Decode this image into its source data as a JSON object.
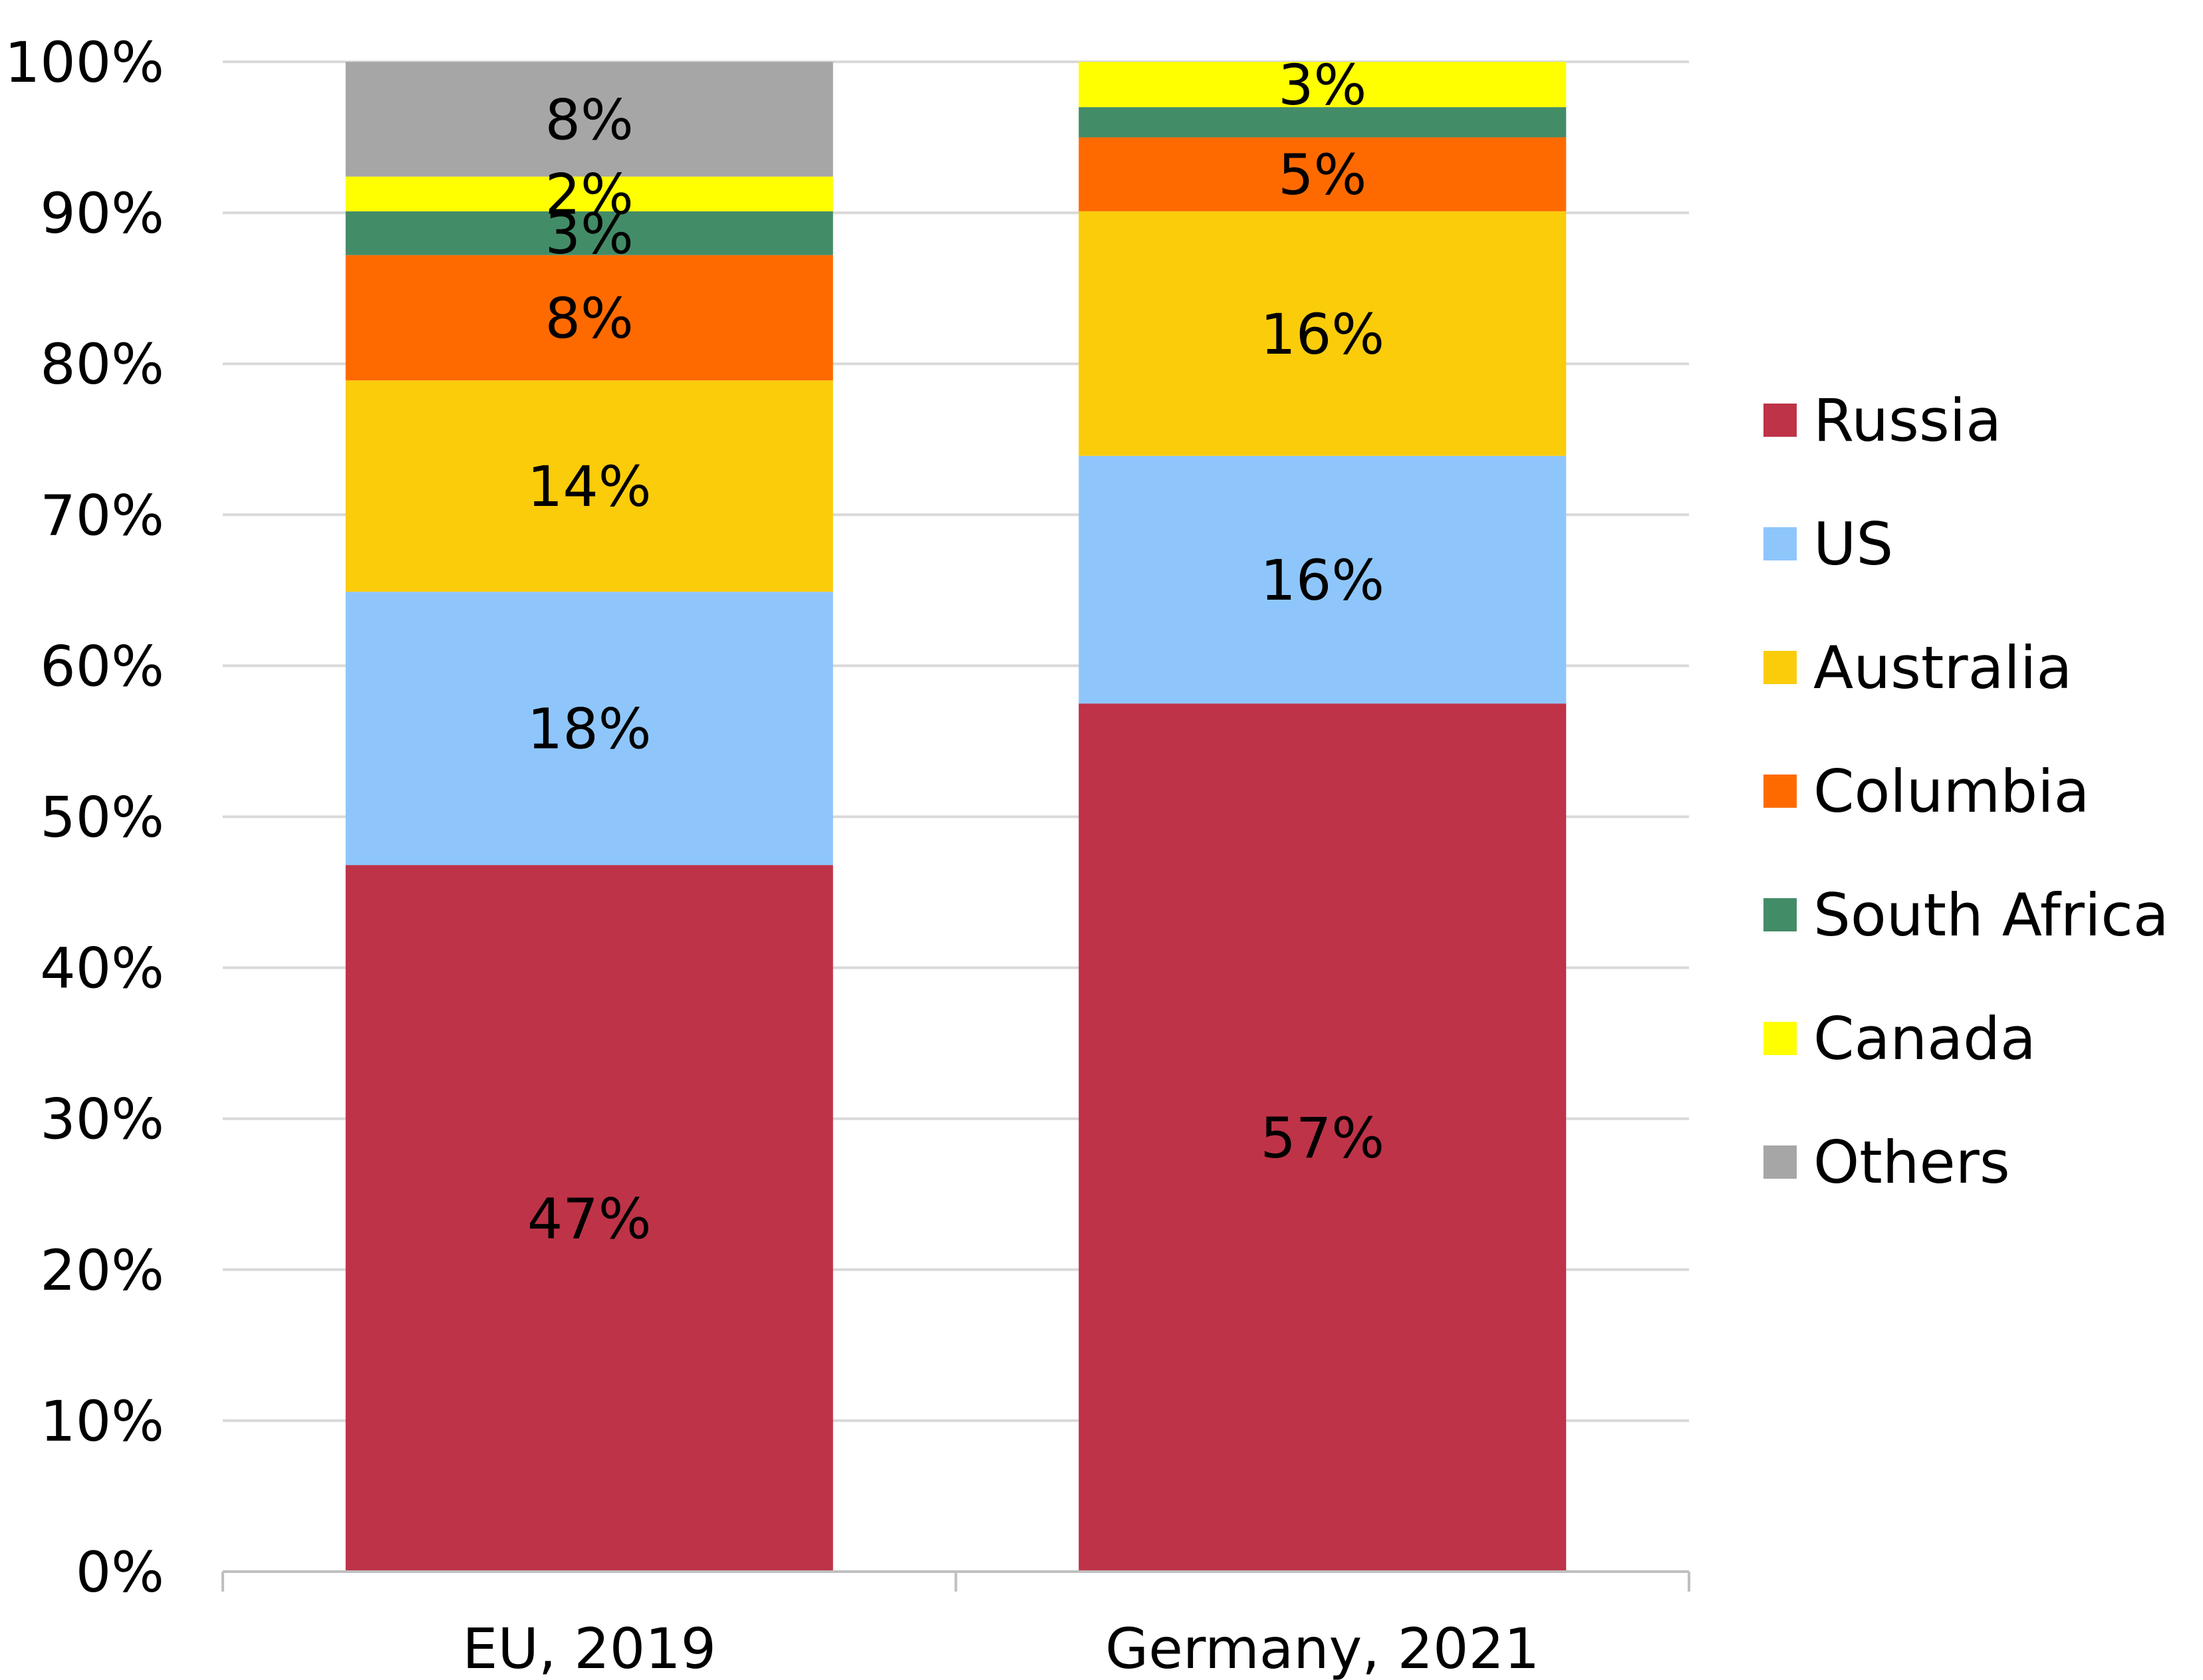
{
  "chart_data": {
    "type": "bar",
    "stacked": true,
    "percent_stacked": true,
    "categories": [
      "EU, 2019",
      "Germany, 2021"
    ],
    "series": [
      {
        "name": "Russia",
        "color": "#BE3347",
        "values": [
          46.8,
          57.5
        ],
        "labels": [
          "47%",
          "57%"
        ]
      },
      {
        "name": "US",
        "color": "#8EC6FC",
        "values": [
          18.1,
          16.4
        ],
        "labels": [
          "18%",
          "16%"
        ]
      },
      {
        "name": "Australia",
        "color": "#FACC0A",
        "values": [
          14.0,
          16.2
        ],
        "labels": [
          "14%",
          "16%"
        ]
      },
      {
        "name": "Columbia",
        "color": "#FF6A00",
        "values": [
          8.3,
          4.9
        ],
        "labels": [
          "8%",
          "5%"
        ]
      },
      {
        "name": "South Africa",
        "color": "#438C68",
        "values": [
          2.9,
          2.0
        ],
        "labels": [
          "3%",
          ""
        ]
      },
      {
        "name": "Canada",
        "color": "#FFFF00",
        "values": [
          2.3,
          3.0
        ],
        "labels": [
          "2%",
          "3%"
        ]
      },
      {
        "name": "Others",
        "color": "#A6A6A6",
        "values": [
          7.6,
          0.0
        ],
        "labels": [
          "8%",
          ""
        ]
      }
    ],
    "ylim": [
      0,
      100
    ],
    "yticks": [
      "0%",
      "10%",
      "20%",
      "30%",
      "40%",
      "50%",
      "60%",
      "70%",
      "80%",
      "90%",
      "100%"
    ],
    "xlabel": "",
    "ylabel": "",
    "title": "",
    "grid": true,
    "legend_position": "right",
    "gridline_color": "#D9D9D9",
    "axis_color": "#BFBFBF"
  }
}
